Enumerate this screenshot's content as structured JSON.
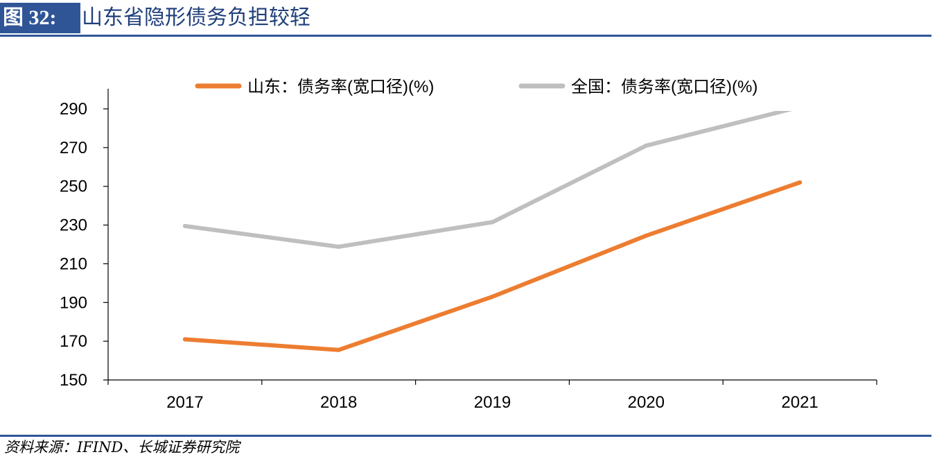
{
  "header": {
    "figure_label": "图 32:",
    "title": "山东省隐形债务负担较轻"
  },
  "footer": {
    "source": "资料来源：IFIND、长城证券研究院"
  },
  "chart_data": {
    "type": "line",
    "x": [
      "2017",
      "2018",
      "2019",
      "2020",
      "2021"
    ],
    "ylim": [
      150,
      290
    ],
    "yticks": [
      "290",
      "270",
      "250",
      "230",
      "210",
      "190",
      "170",
      "150"
    ],
    "grid": false,
    "legend_position": "top",
    "series": [
      {
        "name": "山东：债务率(宽口径)(%)",
        "values": [
          171,
          165.5,
          193,
          224.5,
          252
        ],
        "color": "#ed7d31"
      },
      {
        "name": "全国：债务率(宽口径)(%)",
        "values": [
          229.5,
          218.8,
          231.5,
          271,
          291
        ],
        "color": "#bfbfbf"
      }
    ]
  }
}
